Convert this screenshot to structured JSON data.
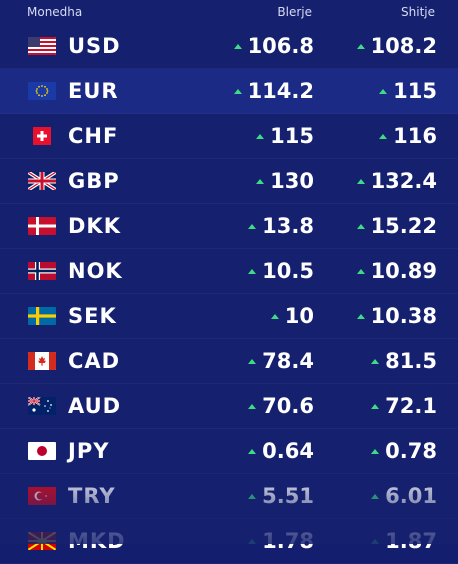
{
  "header": {
    "currency": "Monedha",
    "buy": "Blerje",
    "sell": "Shitje"
  },
  "rows": [
    {
      "code": "USD",
      "flag": "us-flag-icon",
      "buy": "106.8",
      "sell": "108.2"
    },
    {
      "code": "EUR",
      "flag": "eu-flag-icon",
      "buy": "114.2",
      "sell": "115"
    },
    {
      "code": "CHF",
      "flag": "ch-flag-icon",
      "buy": "115",
      "sell": "116"
    },
    {
      "code": "GBP",
      "flag": "gb-flag-icon",
      "buy": "130",
      "sell": "132.4"
    },
    {
      "code": "DKK",
      "flag": "dk-flag-icon",
      "buy": "13.8",
      "sell": "15.22"
    },
    {
      "code": "NOK",
      "flag": "no-flag-icon",
      "buy": "10.5",
      "sell": "10.89"
    },
    {
      "code": "SEK",
      "flag": "se-flag-icon",
      "buy": "10",
      "sell": "10.38"
    },
    {
      "code": "CAD",
      "flag": "ca-flag-icon",
      "buy": "78.4",
      "sell": "81.5"
    },
    {
      "code": "AUD",
      "flag": "au-flag-icon",
      "buy": "70.6",
      "sell": "72.1"
    },
    {
      "code": "JPY",
      "flag": "jp-flag-icon",
      "buy": "0.64",
      "sell": "0.78"
    },
    {
      "code": "TRY",
      "flag": "tr-flag-icon",
      "buy": "5.51",
      "sell": "6.01"
    },
    {
      "code": "MKD",
      "flag": "mk-flag-icon",
      "buy": "1.78",
      "sell": "1.87"
    }
  ],
  "trend_icon": "arrow-up-icon",
  "colors": {
    "background": "#15206f",
    "highlight_row": "#1b2a84",
    "trend_up": "#3ddc84"
  }
}
